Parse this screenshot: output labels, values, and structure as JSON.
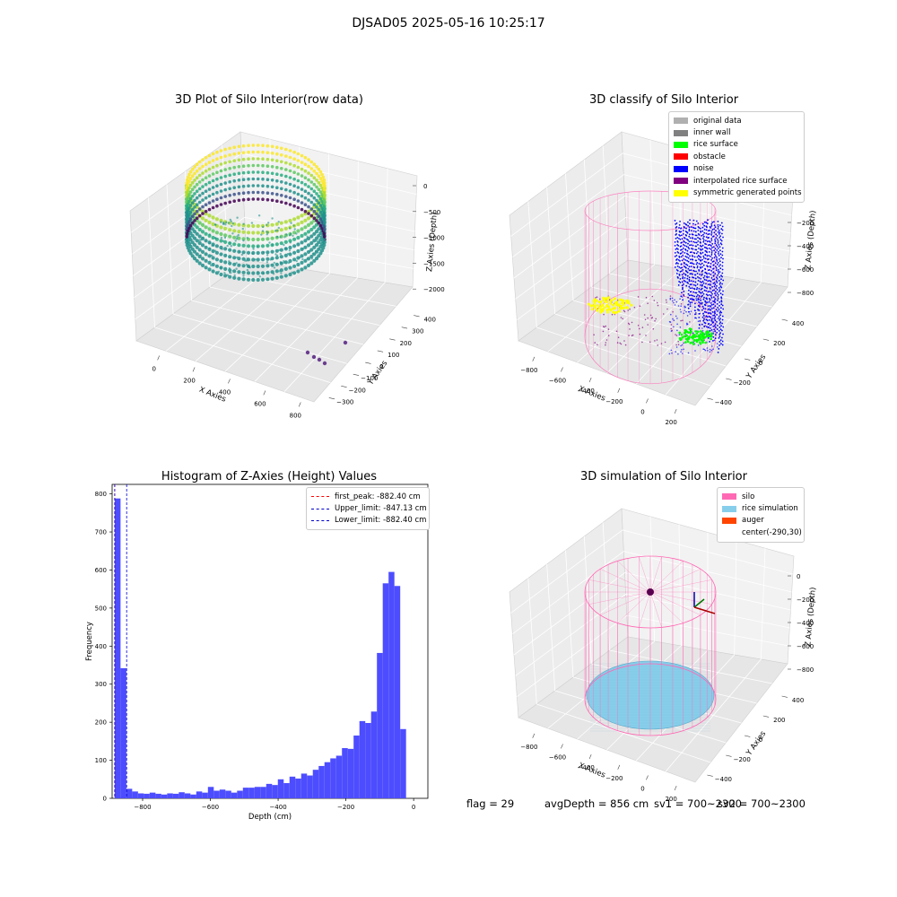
{
  "figure": {
    "title": "DJSAD05 2025-05-16 10:25:17",
    "footer": {
      "flag": "flag = 29",
      "avg_depth": "avgDepth = 856 cm",
      "sv1": "sv1 = 700~2300",
      "sv2": "sv2 = 700~2300"
    }
  },
  "chart_data": [
    {
      "type": "scatter3d",
      "title": "3D Plot of Silo Interior(row data)",
      "xlabel": "X Axies",
      "ylabel": "Y Axies",
      "zlabel": "Z Axies (Depth)",
      "x_ticks": [
        "0",
        "200",
        "400",
        "600",
        "800"
      ],
      "y_ticks": [
        "−300",
        "−200",
        "−100",
        "0",
        "100",
        "200",
        "300",
        "400"
      ],
      "z_ticks": [
        "0",
        "−500",
        "−1000",
        "−1500",
        "−2000"
      ],
      "colormap": "viridis",
      "outliers": [
        [
          805,
          -10,
          -1900
        ],
        [
          845,
          -20,
          -1950
        ],
        [
          870,
          -50,
          -1960
        ],
        [
          890,
          -90,
          -1990
        ],
        [
          935,
          60,
          -1940
        ]
      ]
    },
    {
      "type": "scatter3d",
      "title": "3D classify of Silo Interior",
      "xlabel": "X Axies",
      "ylabel": "Y Axies",
      "zlabel": "Z Axies (Depth)",
      "x_ticks": [
        "−800",
        "−600",
        "−400",
        "−200",
        "0",
        "200"
      ],
      "y_ticks": [
        "−400",
        "−200",
        "0",
        "200",
        "400"
      ],
      "z_ticks": [
        "0",
        "−200",
        "−400",
        "−600",
        "−800"
      ],
      "legend": [
        {
          "label": "original data",
          "color": "#b0b0b0"
        },
        {
          "label": "inner wall",
          "color": "#808080"
        },
        {
          "label": "rice surface",
          "color": "#00ff00"
        },
        {
          "label": "obstacle",
          "color": "#ff0000"
        },
        {
          "label": "noise",
          "color": "#0000ff"
        },
        {
          "label": "interpolated rice surface",
          "color": "#800080"
        },
        {
          "label": "symmetric generated points",
          "color": "#ffff00"
        }
      ],
      "legend_position": "top-right",
      "wireframe_color": "#ff69b4"
    },
    {
      "type": "bar",
      "title": "Histogram of Z-Axies (Height) Values",
      "xlabel": "Depth (cm)",
      "ylabel": "Frequency",
      "xlim": [
        -890,
        42
      ],
      "ylim": [
        0,
        825
      ],
      "x_ticks": [
        -800,
        -600,
        -400,
        -200,
        0
      ],
      "x_tick_labels": [
        "−800",
        "−600",
        "−400",
        "−200",
        "0"
      ],
      "y_ticks": [
        0,
        100,
        200,
        300,
        400,
        500,
        600,
        700,
        800
      ],
      "bar_color": "#4d4dff",
      "bin_width": 17.2,
      "bins_start": -882.4,
      "values": [
        788,
        342,
        25,
        18,
        13,
        12,
        15,
        12,
        10,
        13,
        12,
        16,
        13,
        10,
        18,
        15,
        30,
        20,
        23,
        20,
        15,
        20,
        28,
        28,
        30,
        30,
        38,
        35,
        50,
        40,
        57,
        52,
        65,
        60,
        75,
        85,
        95,
        105,
        112,
        132,
        130,
        165,
        203,
        198,
        228,
        382,
        565,
        595,
        558,
        182
      ],
      "lines": [
        {
          "label": "first_peak: -882.40 cm",
          "x": -882.4,
          "color": "#ff0000"
        },
        {
          "label": "Upper_limit: -847.13 cm",
          "x": -847.13,
          "color": "#0000cc"
        },
        {
          "label": "Lower_limit: -882.40 cm",
          "x": -882.4,
          "color": "#0000cc"
        }
      ],
      "legend_position": "top-right"
    },
    {
      "type": "surface3d",
      "title": "3D simulation of Silo Interior",
      "xlabel": "X Axies",
      "ylabel": "Y Axies",
      "zlabel": "Z Axies (Depth)",
      "x_ticks": [
        "−800",
        "−600",
        "−400",
        "−200",
        "0",
        "200"
      ],
      "y_ticks": [
        "−400",
        "−200",
        "0",
        "200",
        "400"
      ],
      "z_ticks": [
        "0",
        "−200",
        "−400",
        "−600",
        "−800"
      ],
      "legend": [
        {
          "label": "silo",
          "color": "#ff69b4"
        },
        {
          "label": "rice simulation",
          "color": "#87ceeb"
        },
        {
          "label": "auger",
          "color": "#ff4500"
        },
        {
          "label": "center(-290,30)",
          "color": ""
        }
      ],
      "legend_position": "top-right"
    }
  ]
}
